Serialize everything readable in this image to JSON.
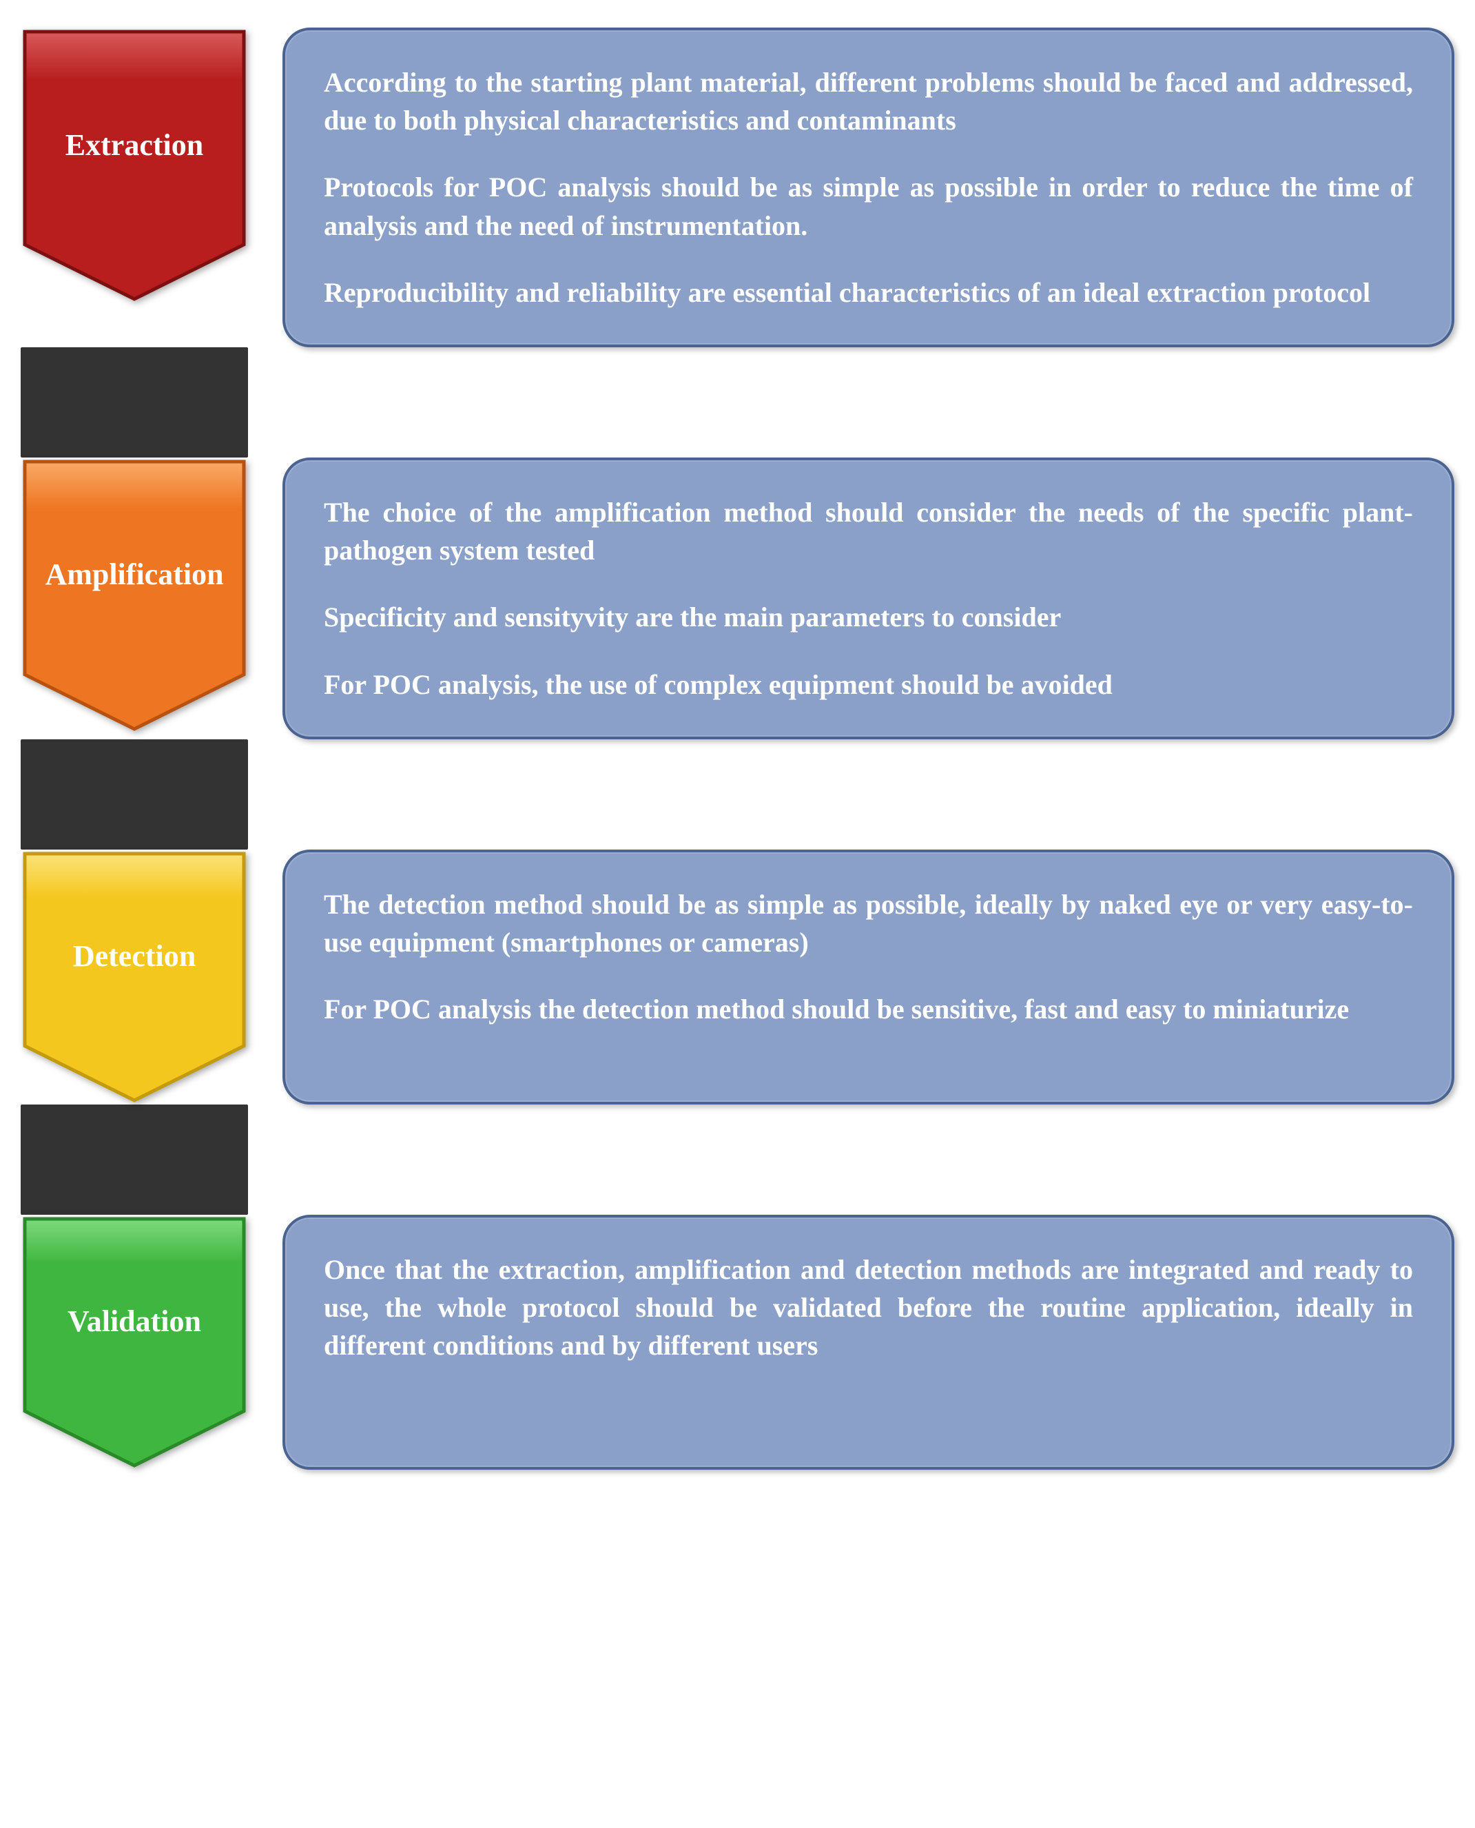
{
  "diagram": {
    "type": "flowchart",
    "background_color": "#ffffff",
    "connector_color": "#333333",
    "connector_width": 14,
    "connector_height": 160,
    "desc_box": {
      "fill": "#8ba0c8",
      "border": "#4a6390",
      "text_color": "#ffffff",
      "radius": 40,
      "fontsize": 40
    },
    "label_fontsize": 44,
    "stages": [
      {
        "id": "extraction",
        "label": "Extraction",
        "pentagon_height": 400,
        "colors": {
          "fill": "#b81e1e",
          "stroke": "#7d1111",
          "highlight": "#d85a5a"
        },
        "paragraphs": [
          "According to the starting plant material, different problems should be faced and addressed, due to both physical characteristics and contaminants",
          "Protocols for POC analysis should be as simple as possible in order to reduce the time of analysis and the need of instrumentation.",
          "Reproducibility and reliability are essential characteristics of an ideal extraction protocol"
        ]
      },
      {
        "id": "amplification",
        "label": "Amplification",
        "pentagon_height": 400,
        "colors": {
          "fill": "#ee7521",
          "stroke": "#b85210",
          "highlight": "#f9a968"
        },
        "paragraphs": [
          "The choice of the amplification method should consider the needs of the specific plant-pathogen system tested",
          "Specificity and sensityvity are the main parameters to consider",
          "For POC analysis, the use of complex equipment should be avoided"
        ]
      },
      {
        "id": "detection",
        "label": "Detection",
        "pentagon_height": 370,
        "colors": {
          "fill": "#f4c71e",
          "stroke": "#c49a0e",
          "highlight": "#fbe27a"
        },
        "paragraphs": [
          "The detection method should be as simple as possible, ideally by naked eye or very easy-to-use equipment (smartphones or cameras)",
          "For POC analysis the detection method should be sensitive, fast and easy to miniaturize"
        ]
      },
      {
        "id": "validation",
        "label": "Validation",
        "pentagon_height": 370,
        "colors": {
          "fill": "#3fb63f",
          "stroke": "#2a8a2a",
          "highlight": "#7ed87e"
        },
        "paragraphs": [
          "Once that the extraction, amplification and detection methods are integrated  and ready to use, the whole protocol should be  validated before the routine application, ideally in different conditions  and by different users"
        ]
      }
    ]
  }
}
